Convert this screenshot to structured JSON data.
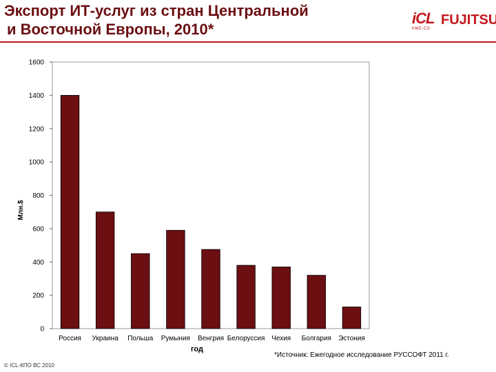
{
  "title": {
    "line1": "Экспорт ИТ-услуг из стран Центральной",
    "line2": "и Восточной Европы, 2010*"
  },
  "logos": {
    "icl": "iCL",
    "icl_sub": "KME-CS",
    "fujitsu": "FUJITSU"
  },
  "colors": {
    "title": "#6b0f12",
    "bar": "#6b0f12",
    "brand_red": "#c4161c"
  },
  "chart_data": {
    "type": "bar",
    "categories": [
      "Россия",
      "Украина",
      "Польша",
      "Румыния",
      "Венгрия",
      "Белоруссия",
      "Чехия",
      "Болгария",
      "Эстония"
    ],
    "values": [
      1400,
      700,
      450,
      590,
      475,
      380,
      370,
      320,
      130
    ],
    "xlabel": "год",
    "ylabel": "Млн.$",
    "ylim": [
      0,
      1600
    ],
    "yticks": [
      0,
      200,
      400,
      600,
      800,
      1000,
      1200,
      1400,
      1600
    ],
    "grid": false,
    "legend": "none"
  },
  "footnote": "*Источник: Ежегодное исследование РУССОФТ 2011 г.",
  "footer": "© ICL-КПО ВС 2010"
}
